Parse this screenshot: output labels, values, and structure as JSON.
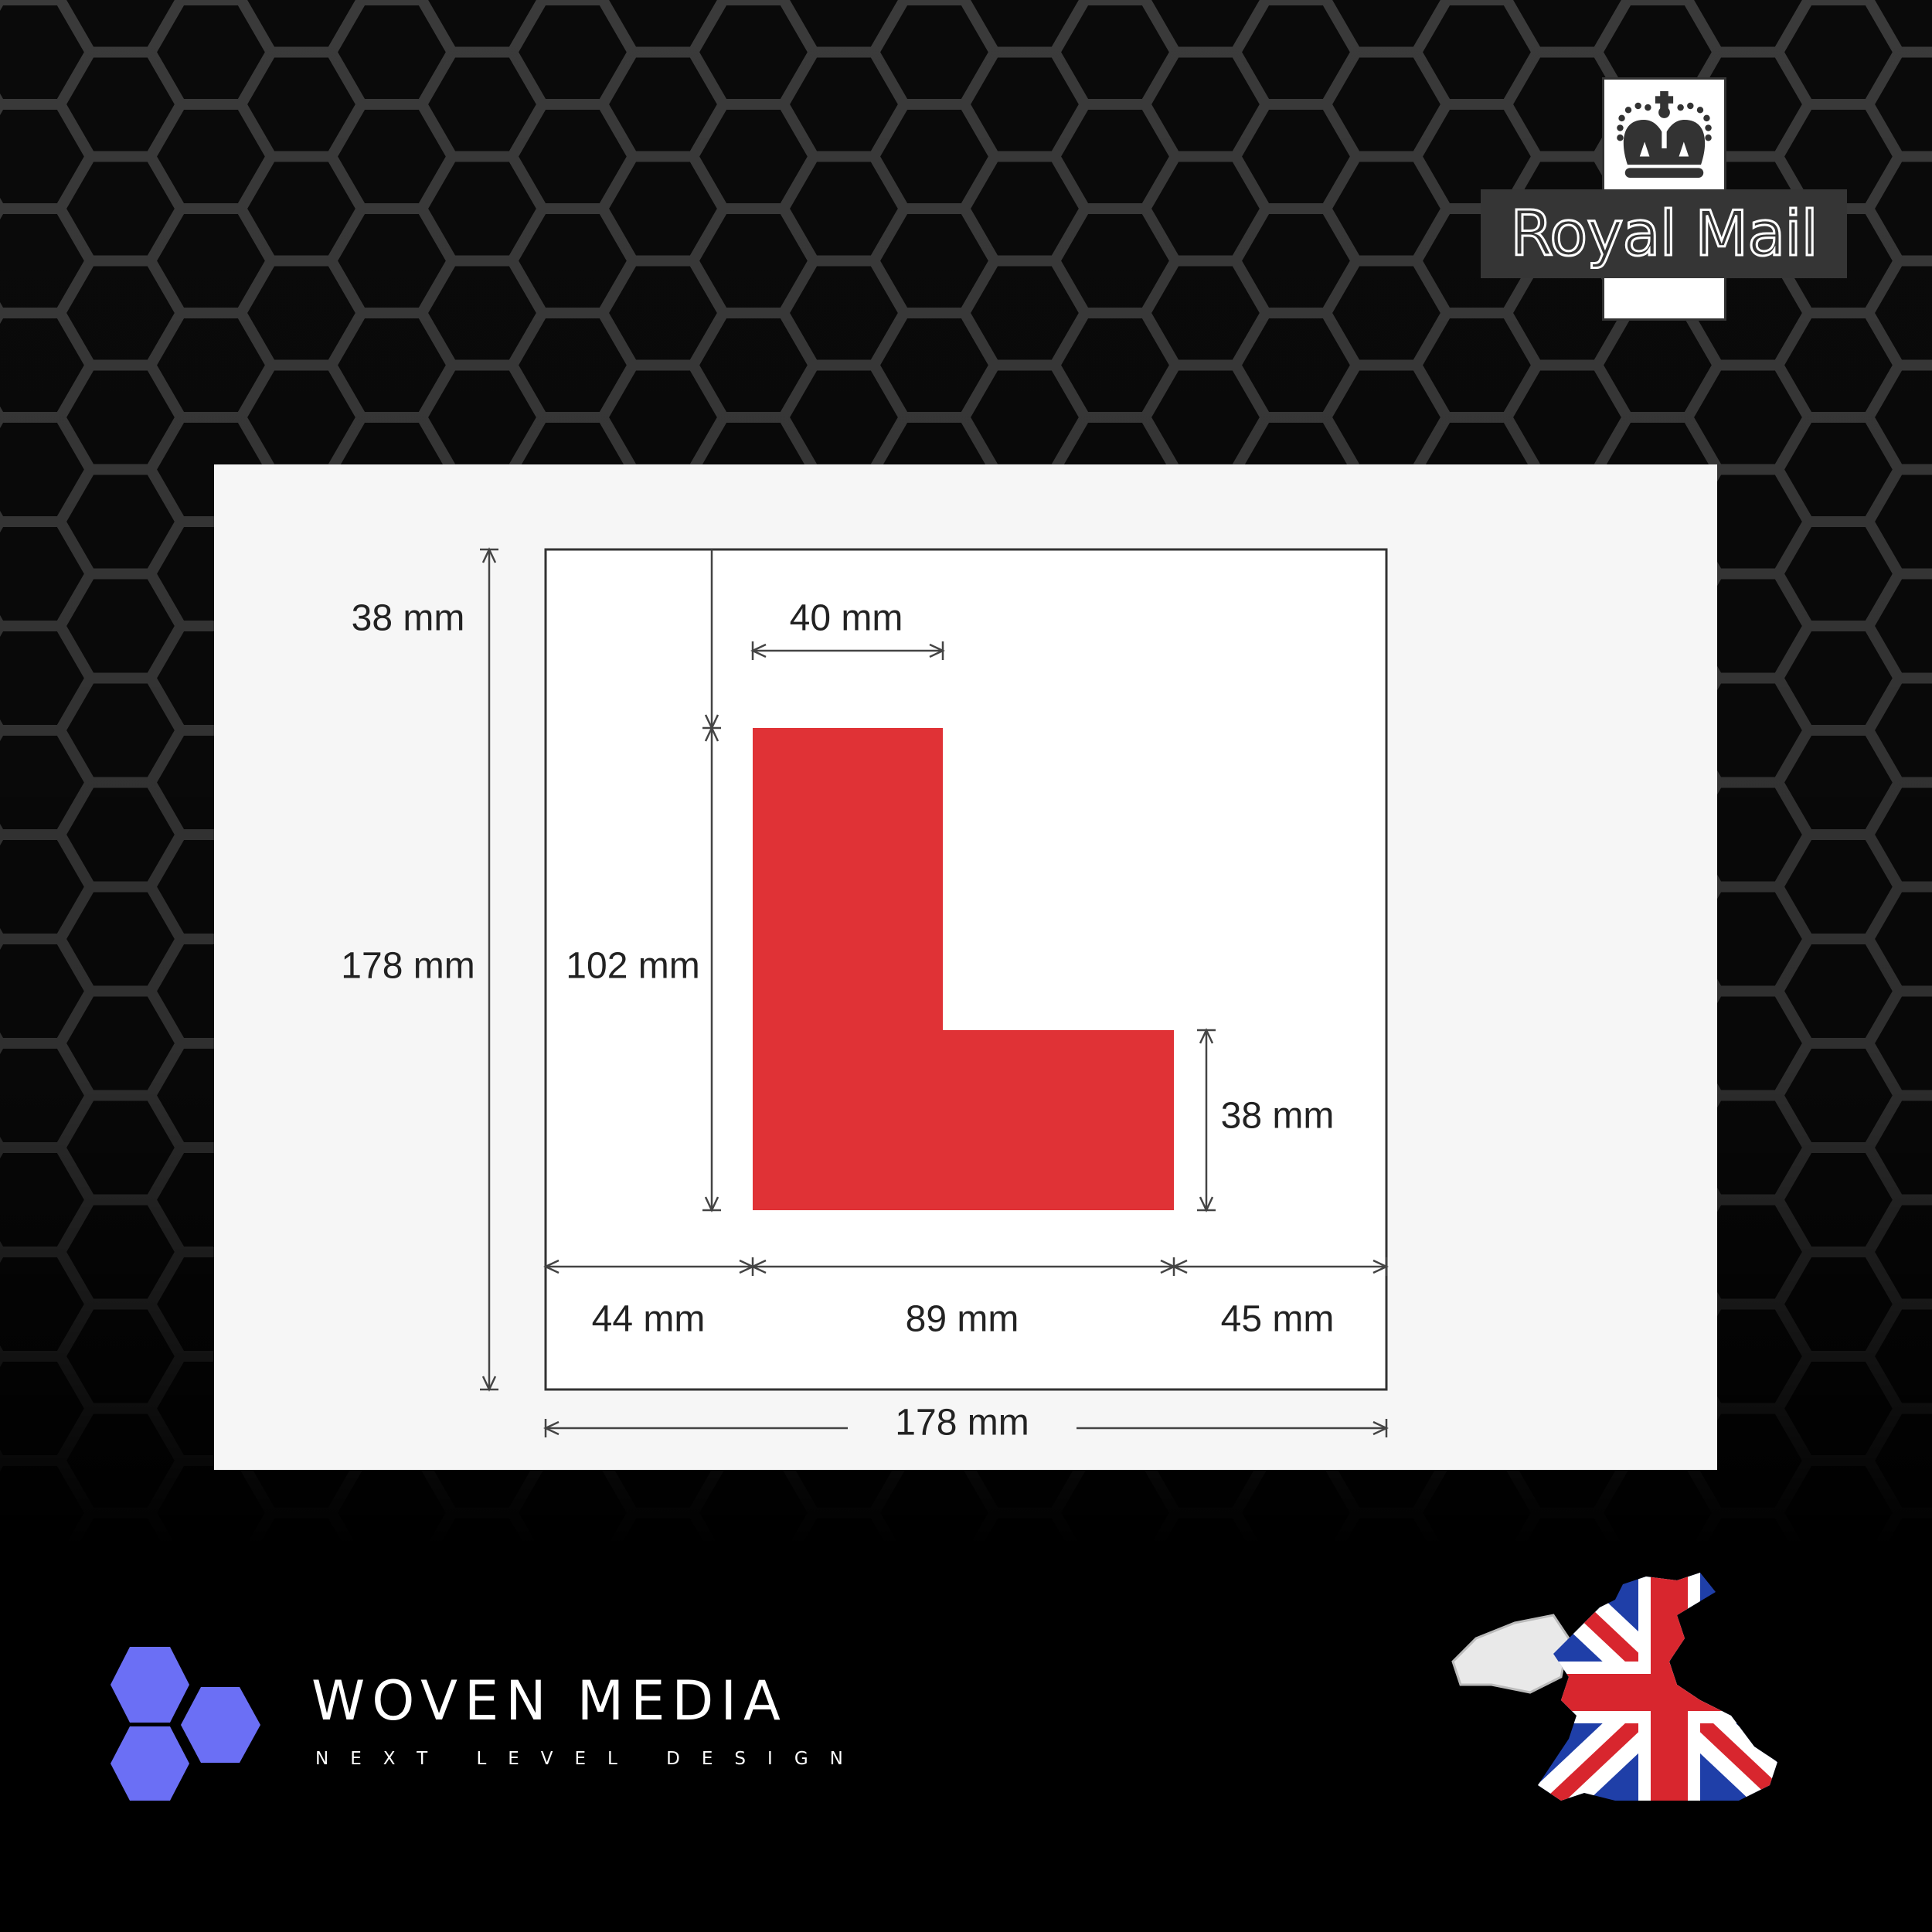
{
  "brand": {
    "royal_mail_text": "Royal Mail",
    "woven_media_title": "WOVEN MEDIA",
    "woven_media_tagline": "NEXT LEVEL DESIGN"
  },
  "colors": {
    "background": "#050505",
    "hex_pattern": "#3a3a3a",
    "panel": "#f6f6f6",
    "l_plate_red": "#e03236",
    "woven_accent": "#6b6ff5"
  },
  "diagram": {
    "overall_height": "178 mm",
    "overall_width": "178 mm",
    "top_margin": "38 mm",
    "stem_width": "40 mm",
    "stem_height": "102 mm",
    "foot_height": "38 mm",
    "left_margin": "44 mm",
    "letter_width": "89 mm",
    "right_margin": "45 mm"
  },
  "icons": [
    "crown-icon",
    "hexagon-logo-icon",
    "uk-flag-map-icon"
  ]
}
